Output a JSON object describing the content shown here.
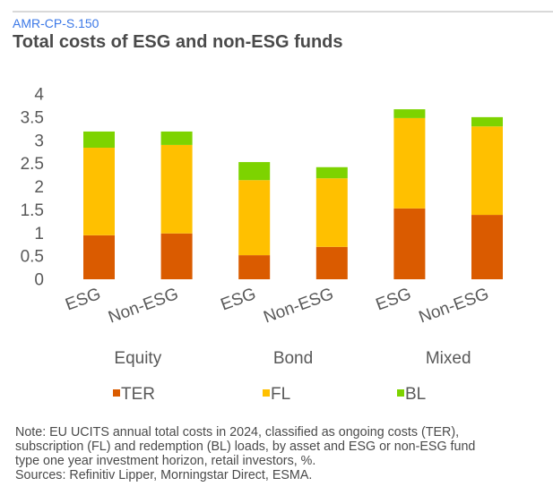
{
  "header": {
    "code": "AMR-CP-S.150",
    "title": "Total costs of ESG and non-ESG funds"
  },
  "chart_data": {
    "type": "bar",
    "stacked": true,
    "title": "Total costs of ESG and non-ESG funds",
    "xlabel": "",
    "ylabel": "",
    "ylim": [
      0,
      4
    ],
    "yticks": [
      "0",
      "0.5",
      "1",
      "1.5",
      "2",
      "2.5",
      "3",
      "3.5",
      "4"
    ],
    "ytick_values": [
      0,
      0.5,
      1,
      1.5,
      2,
      2.5,
      3,
      3.5,
      4
    ],
    "grid": false,
    "groups": [
      "Equity",
      "Bond",
      "Mixed"
    ],
    "categories": [
      "ESG",
      "Non-ESG",
      "ESG",
      "Non-ESG",
      "ESG",
      "Non-ESG"
    ],
    "category_group": [
      "Equity",
      "Equity",
      "Bond",
      "Bond",
      "Mixed",
      "Mixed"
    ],
    "series": [
      {
        "name": "TER",
        "color": "#DA5B00",
        "values": [
          0.95,
          0.99,
          0.52,
          0.7,
          1.53,
          1.39
        ]
      },
      {
        "name": "FL",
        "color": "#FFC000",
        "values": [
          1.89,
          1.91,
          1.62,
          1.48,
          1.95,
          1.91
        ]
      },
      {
        "name": "BL",
        "color": "#7DD300",
        "values": [
          0.35,
          0.29,
          0.39,
          0.24,
          0.19,
          0.2
        ]
      }
    ],
    "legend": {
      "position": "bottom",
      "entries": [
        "TER",
        "FL",
        "BL"
      ]
    }
  },
  "notes": {
    "lines": [
      "Note: EU UCITS annual total costs in 2024, classified as ongoing costs (TER),",
      "subscription (FL) and redemption (BL) loads, by asset and ESG or non-ESG fund",
      "type one year investment horizon, retail investors, %.",
      "Sources: Refinitiv Lipper, Morningstar Direct, ESMA."
    ]
  }
}
